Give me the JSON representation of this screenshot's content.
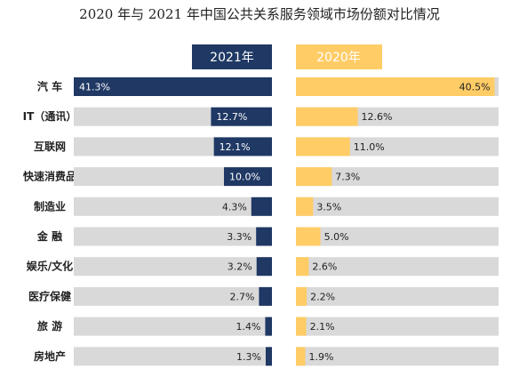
{
  "chart_data": {
    "type": "bar",
    "title": "2020 年与 2021 年中国公共关系服务领域市场份额对比情况",
    "categories": [
      "汽 车",
      "IT（通讯）",
      "互联网",
      "快速消费品",
      "制造业",
      "金 融",
      "娱乐/文化",
      "医疗保健",
      "旅 游",
      "房地产"
    ],
    "series": [
      {
        "name": "2021年",
        "values": [
          41.3,
          12.7,
          12.1,
          10.0,
          4.3,
          3.3,
          3.2,
          2.7,
          1.4,
          1.3
        ],
        "labels": [
          "41.3%",
          "12.7%",
          "12.1%",
          "10.0%",
          "4.3%",
          "3.3%",
          "3.2%",
          "2.7%",
          "1.4%",
          "1.3%"
        ],
        "color": "#1f3864"
      },
      {
        "name": "2020年",
        "values": [
          40.5,
          12.6,
          11.0,
          7.3,
          3.5,
          5.0,
          2.6,
          2.2,
          2.1,
          1.9
        ],
        "labels": [
          "40.5%",
          "12.6%",
          "11.0%",
          "7.3%",
          "3.5%",
          "5.0%",
          "2.6%",
          "2.2%",
          "2.1%",
          "1.9%"
        ],
        "color": "#ffcc66"
      }
    ],
    "xlim": [
      0,
      41.3
    ],
    "track_color": "#d9d9d9",
    "grid": false,
    "legend": "top"
  }
}
